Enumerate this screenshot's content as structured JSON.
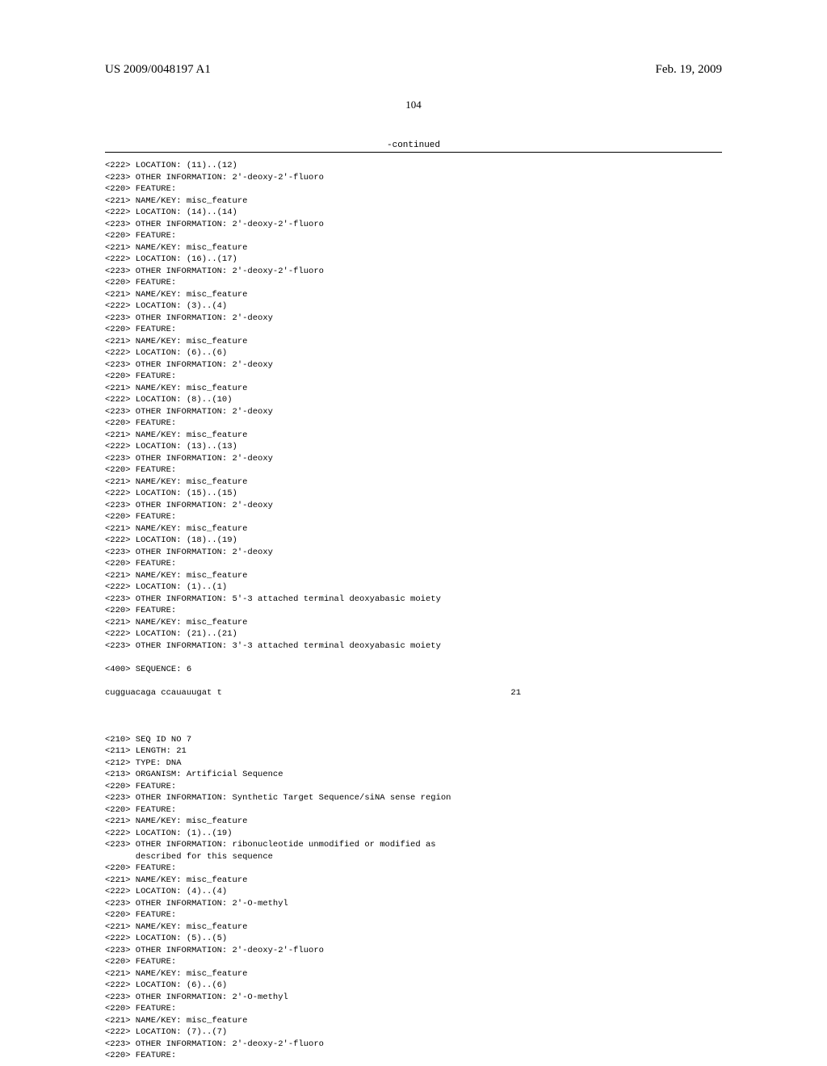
{
  "header": {
    "publication": "US 2009/0048197 A1",
    "date": "Feb. 19, 2009"
  },
  "page_number": "104",
  "continued_label": "-continued",
  "features": [
    "<222> LOCATION: (11)..(12)",
    "<223> OTHER INFORMATION: 2'-deoxy-2'-fluoro",
    "<220> FEATURE:",
    "<221> NAME/KEY: misc_feature",
    "<222> LOCATION: (14)..(14)",
    "<223> OTHER INFORMATION: 2'-deoxy-2'-fluoro",
    "<220> FEATURE:",
    "<221> NAME/KEY: misc_feature",
    "<222> LOCATION: (16)..(17)",
    "<223> OTHER INFORMATION: 2'-deoxy-2'-fluoro",
    "<220> FEATURE:",
    "<221> NAME/KEY: misc_feature",
    "<222> LOCATION: (3)..(4)",
    "<223> OTHER INFORMATION: 2'-deoxy",
    "<220> FEATURE:",
    "<221> NAME/KEY: misc_feature",
    "<222> LOCATION: (6)..(6)",
    "<223> OTHER INFORMATION: 2'-deoxy",
    "<220> FEATURE:",
    "<221> NAME/KEY: misc_feature",
    "<222> LOCATION: (8)..(10)",
    "<223> OTHER INFORMATION: 2'-deoxy",
    "<220> FEATURE:",
    "<221> NAME/KEY: misc_feature",
    "<222> LOCATION: (13)..(13)",
    "<223> OTHER INFORMATION: 2'-deoxy",
    "<220> FEATURE:",
    "<221> NAME/KEY: misc_feature",
    "<222> LOCATION: (15)..(15)",
    "<223> OTHER INFORMATION: 2'-deoxy",
    "<220> FEATURE:",
    "<221> NAME/KEY: misc_feature",
    "<222> LOCATION: (18)..(19)",
    "<223> OTHER INFORMATION: 2'-deoxy",
    "<220> FEATURE:",
    "<221> NAME/KEY: misc_feature",
    "<222> LOCATION: (1)..(1)",
    "<223> OTHER INFORMATION: 5'-3 attached terminal deoxyabasic moiety",
    "<220> FEATURE:",
    "<221> NAME/KEY: misc_feature",
    "<222> LOCATION: (21)..(21)",
    "<223> OTHER INFORMATION: 3'-3 attached terminal deoxyabasic moiety",
    "",
    "<400> SEQUENCE: 6"
  ],
  "sequence6": {
    "seq": "cugguacaga ccauauugat t",
    "len": "21"
  },
  "seq7_header": [
    "<210> SEQ ID NO 7",
    "<211> LENGTH: 21",
    "<212> TYPE: DNA",
    "<213> ORGANISM: Artificial Sequence",
    "<220> FEATURE:",
    "<223> OTHER INFORMATION: Synthetic Target Sequence/siNA sense region",
    "<220> FEATURE:",
    "<221> NAME/KEY: misc_feature",
    "<222> LOCATION: (1)..(19)",
    "<223> OTHER INFORMATION: ribonucleotide unmodified or modified as",
    "      described for this sequence",
    "<220> FEATURE:",
    "<221> NAME/KEY: misc_feature",
    "<222> LOCATION: (4)..(4)",
    "<223> OTHER INFORMATION: 2'-O-methyl",
    "<220> FEATURE:",
    "<221> NAME/KEY: misc_feature",
    "<222> LOCATION: (5)..(5)",
    "<223> OTHER INFORMATION: 2'-deoxy-2'-fluoro",
    "<220> FEATURE:",
    "<221> NAME/KEY: misc_feature",
    "<222> LOCATION: (6)..(6)",
    "<223> OTHER INFORMATION: 2'-O-methyl",
    "<220> FEATURE:",
    "<221> NAME/KEY: misc_feature",
    "<222> LOCATION: (7)..(7)",
    "<223> OTHER INFORMATION: 2'-deoxy-2'-fluoro",
    "<220> FEATURE:"
  ]
}
